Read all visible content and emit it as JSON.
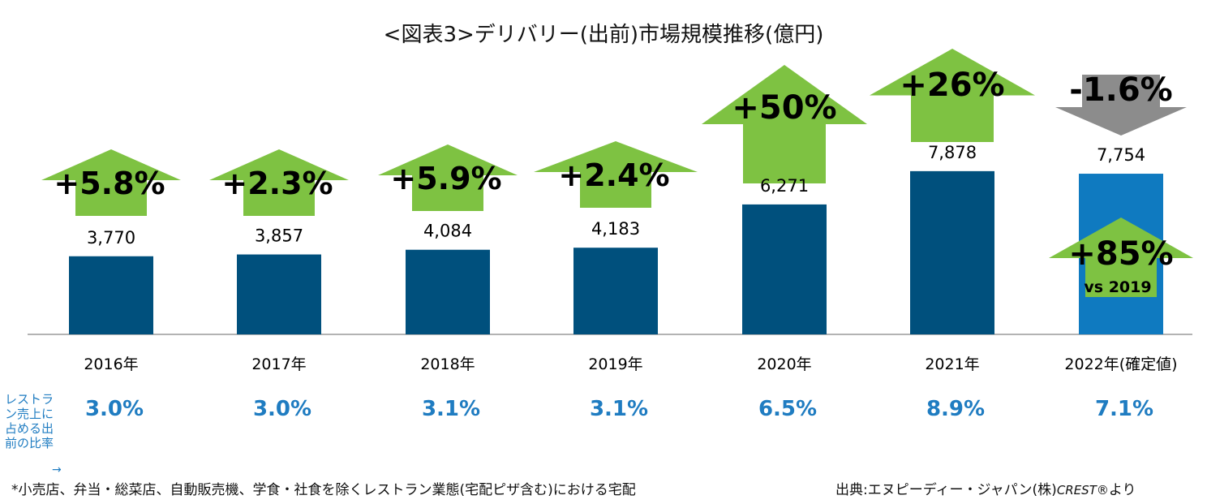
{
  "title": "<図表3>デリバリー(出前)市場規模推移(億円)",
  "side_label": "レストラン売上に占める出前の比率",
  "side_arrow": "→",
  "footnote": "*小売店、弁当・総菜店、自動販売機、学食・社食を除くレストラン業態(宅配ピザ含む)における宅配",
  "source_prefix": "出典:エヌピーディー・ジャパン(株)",
  "source_brand": "CREST®",
  "source_suffix": "より",
  "colors": {
    "bar": "#00507d",
    "bar_highlight": "#0f7ac0",
    "arrow_up": "#7ec242",
    "arrow_down": "#8c8c8c",
    "ratio_text": "#1f7cc1",
    "axis": "#9a9a9a"
  },
  "chart_data": {
    "type": "bar",
    "categories": [
      "2016年",
      "2017年",
      "2018年",
      "2019年",
      "2020年",
      "2021年",
      "2022年(確定値)"
    ],
    "values": [
      3770,
      3857,
      4084,
      4183,
      6271,
      7878,
      7754
    ],
    "value_labels": [
      "3,770",
      "3,857",
      "4,084",
      "4,183",
      "6,271",
      "7,878",
      "7,754"
    ],
    "growth": [
      {
        "label": "+5.8%",
        "direction": "up"
      },
      {
        "label": "+2.3%",
        "direction": "up"
      },
      {
        "label": "+5.9%",
        "direction": "up"
      },
      {
        "label": "+2.4%",
        "direction": "up"
      },
      {
        "label": "+50%",
        "direction": "up"
      },
      {
        "label": "+26%",
        "direction": "up"
      },
      {
        "label": "-1.6%",
        "direction": "down"
      }
    ],
    "delivery_ratio": [
      "3.0%",
      "3.0%",
      "3.1%",
      "3.1%",
      "6.5%",
      "8.9%",
      "7.1%"
    ],
    "annotation": {
      "category": "2022年(確定値)",
      "label": "+85%",
      "sublabel": "vs 2019",
      "direction": "up"
    },
    "ylim": [
      0,
      10000
    ]
  }
}
